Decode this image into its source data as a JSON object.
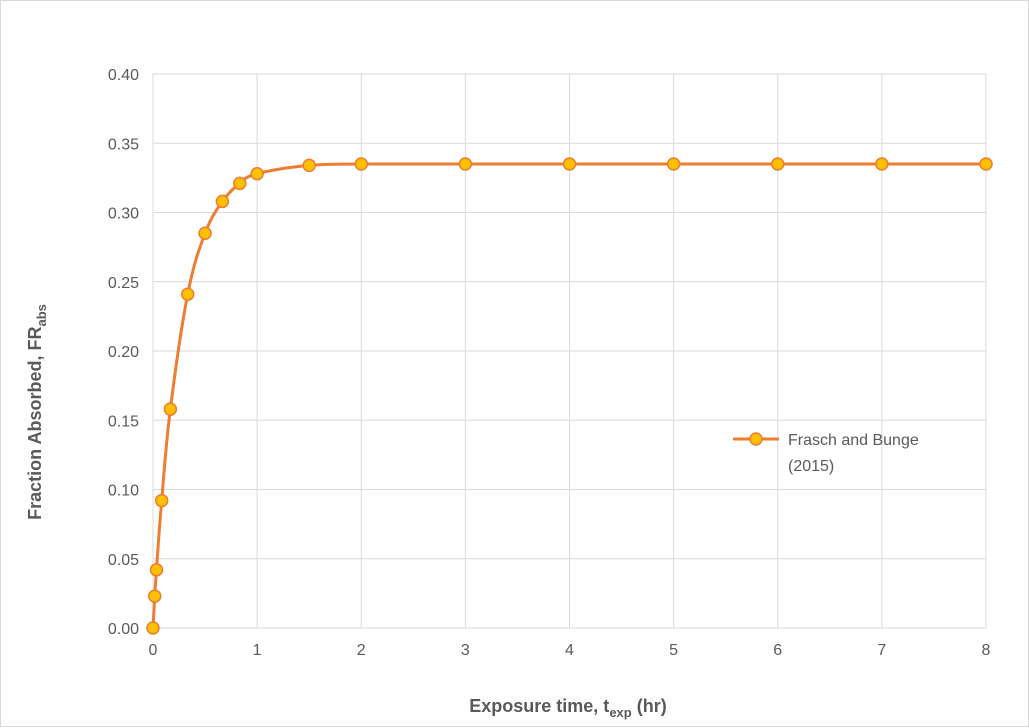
{
  "chart_data": {
    "type": "line",
    "title": "",
    "xlabel": {
      "main": "Exposure time, t",
      "sub": "exp",
      "suffix": " (hr)"
    },
    "ylabel": {
      "main": "Fraction Absorbed, FR",
      "sub": "abs"
    },
    "xlim": [
      0,
      8
    ],
    "ylim": [
      0,
      0.4
    ],
    "xticks": [
      0,
      1,
      2,
      3,
      4,
      5,
      6,
      7,
      8
    ],
    "yticks": [
      0,
      0.05,
      0.1,
      0.15,
      0.2,
      0.25,
      0.3,
      0.35,
      0.4
    ],
    "xtick_labels": [
      "0",
      "1",
      "2",
      "3",
      "4",
      "5",
      "6",
      "7",
      "8"
    ],
    "ytick_labels": [
      "0.00",
      "0.05",
      "0.10",
      "0.15",
      "0.20",
      "0.25",
      "0.30",
      "0.35",
      "0.40"
    ],
    "grid": true,
    "legend_position": "right",
    "series": [
      {
        "name": "Frasch and Bunge (2015)",
        "name_lines": [
          "Frasch and Bunge",
          "(2015)"
        ],
        "line_color": "#ed7d31",
        "marker_fill": "#ffc000",
        "marker_edge": "#ed7d31",
        "x": [
          0,
          0.0167,
          0.0333,
          0.0833,
          0.1667,
          0.3333,
          0.5,
          0.6667,
          0.8333,
          1,
          1.5,
          2,
          3,
          4,
          5,
          6,
          7,
          8
        ],
        "y": [
          0,
          0.023,
          0.042,
          0.092,
          0.158,
          0.241,
          0.285,
          0.308,
          0.321,
          0.328,
          0.334,
          0.335,
          0.335,
          0.335,
          0.335,
          0.335,
          0.335,
          0.335
        ]
      }
    ]
  }
}
